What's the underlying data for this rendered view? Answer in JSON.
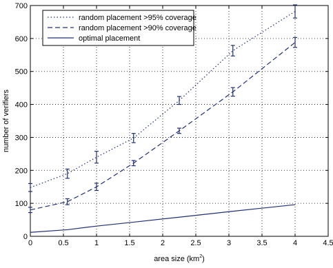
{
  "colors": {
    "series": "#1f2d7a",
    "axis": "#000000",
    "grid": "#000000",
    "background": "#ffffff"
  },
  "chart_data": {
    "type": "line",
    "title": "",
    "xlabel": "area size (km²)",
    "xlabel_prefix": "area size (km",
    "xlabel_superscript": "2",
    "xlabel_suffix": ")",
    "ylabel": "number of verifiers",
    "xlim": [
      0,
      4.5
    ],
    "ylim": [
      0,
      700
    ],
    "xticks": [
      "0",
      "0.5",
      "1",
      "1.5",
      "2",
      "2.5",
      "3",
      "3.5",
      "4",
      "4.5"
    ],
    "xtick_values": [
      0,
      0.5,
      1,
      1.5,
      2,
      2.5,
      3,
      3.5,
      4,
      4.5
    ],
    "yticks": [
      "0",
      "100",
      "200",
      "300",
      "400",
      "500",
      "600",
      "700"
    ],
    "ytick_values": [
      0,
      100,
      200,
      300,
      400,
      500,
      600,
      700
    ],
    "grid": true,
    "legend_position": "top-left",
    "series": [
      {
        "name": "random placement >95% coverage",
        "style": "dotted",
        "x": [
          0,
          0.56,
          1,
          1.56,
          2.25,
          3.06,
          4
        ],
        "y": [
          148,
          190,
          240,
          298,
          412,
          563,
          682
        ],
        "error": [
          12,
          14,
          18,
          14,
          12,
          16,
          20
        ]
      },
      {
        "name": "random placement >90% coverage",
        "style": "dashed",
        "x": [
          0,
          0.56,
          1,
          1.56,
          2.25,
          3.06,
          4
        ],
        "y": [
          80,
          105,
          150,
          222,
          320,
          438,
          588
        ],
        "error": [
          8,
          9,
          11,
          8,
          8,
          13,
          15
        ]
      },
      {
        "name": "optimal placement",
        "style": "solid",
        "x": [
          0,
          0.56,
          1,
          1.56,
          2.25,
          3.06,
          4
        ],
        "y": [
          12,
          20,
          31,
          43,
          58,
          76,
          96
        ],
        "error": null
      }
    ]
  }
}
